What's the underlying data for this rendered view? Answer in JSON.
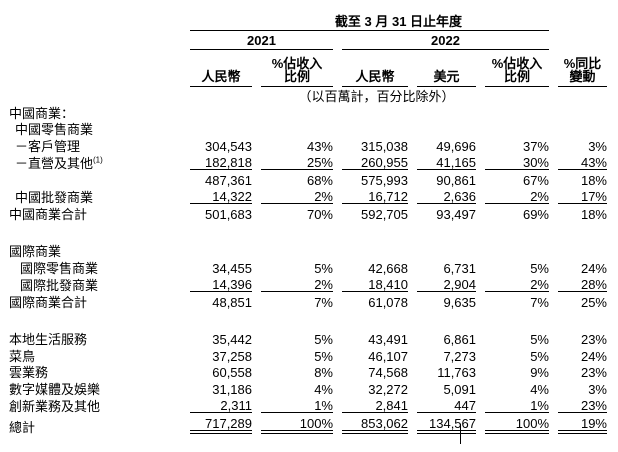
{
  "table": {
    "period_header": "截至 3 月 31 日止年度",
    "year_2021": "2021",
    "year_2022": "2022",
    "columns": [
      "人民幣",
      "%佔收入\n比例",
      "人民幣",
      "美元",
      "%佔收入\n比例",
      "%同比\n變動"
    ],
    "unit_note": "（以百萬計，百分比除外）",
    "rows": [
      {
        "label": "中國商業：",
        "indent": 0
      },
      {
        "label": "中國零售商業",
        "indent": 1
      },
      {
        "label": "－客戶管理",
        "indent": 1,
        "values": [
          "304,543",
          "43%",
          "315,038",
          "49,696",
          "37%",
          "3%"
        ]
      },
      {
        "label": "－直營及其他",
        "sup": "(1)",
        "indent": 1,
        "values": [
          "182,818",
          "25%",
          "260,955",
          "41,165",
          "30%",
          "43%"
        ],
        "rule": "single"
      },
      {
        "label": "",
        "indent": 1,
        "values": [
          "487,361",
          "68%",
          "575,993",
          "90,861",
          "67%",
          "18%"
        ]
      },
      {
        "label": "中國批發商業",
        "indent": 1,
        "values": [
          "14,322",
          "2%",
          "16,712",
          "2,636",
          "2%",
          "17%"
        ],
        "rule": "single"
      },
      {
        "label": "中國商業合計",
        "indent": 0,
        "values": [
          "501,683",
          "70%",
          "592,705",
          "93,497",
          "69%",
          "18%"
        ]
      },
      {
        "spacer": true
      },
      {
        "label": "國際商業",
        "indent": 0
      },
      {
        "label": "國際零售商業",
        "indent": 2,
        "values": [
          "34,455",
          "5%",
          "42,668",
          "6,731",
          "5%",
          "24%"
        ]
      },
      {
        "label": "國際批發商業",
        "indent": 2,
        "values": [
          "14,396",
          "2%",
          "18,410",
          "2,904",
          "2%",
          "28%"
        ],
        "rule": "single"
      },
      {
        "label": "國際商業合計",
        "indent": 0,
        "values": [
          "48,851",
          "7%",
          "61,078",
          "9,635",
          "7%",
          "25%"
        ]
      },
      {
        "spacer": true
      },
      {
        "label": "本地生活服務",
        "indent": 0,
        "values": [
          "35,442",
          "5%",
          "43,491",
          "6,861",
          "5%",
          "23%"
        ]
      },
      {
        "label": "菜鳥",
        "indent": 0,
        "values": [
          "37,258",
          "5%",
          "46,107",
          "7,273",
          "5%",
          "24%"
        ]
      },
      {
        "label": "雲業務",
        "indent": 0,
        "values": [
          "60,558",
          "8%",
          "74,568",
          "11,763",
          "9%",
          "23%"
        ]
      },
      {
        "label": "數字媒體及娛樂",
        "indent": 0,
        "values": [
          "31,186",
          "4%",
          "32,272",
          "5,091",
          "4%",
          "3%"
        ]
      },
      {
        "label": "創新業務及其他",
        "indent": 0,
        "values": [
          "2,311",
          "1%",
          "2,841",
          "447",
          "1%",
          "23%"
        ],
        "rule": "single"
      },
      {
        "label": "總計",
        "indent": 0,
        "values": [
          "717,289",
          "100%",
          "853,062",
          "134,567",
          "100%",
          "19%"
        ],
        "rule": "double"
      }
    ]
  },
  "cursor": {
    "type": "text-ibeam",
    "over_value": "134,567"
  }
}
